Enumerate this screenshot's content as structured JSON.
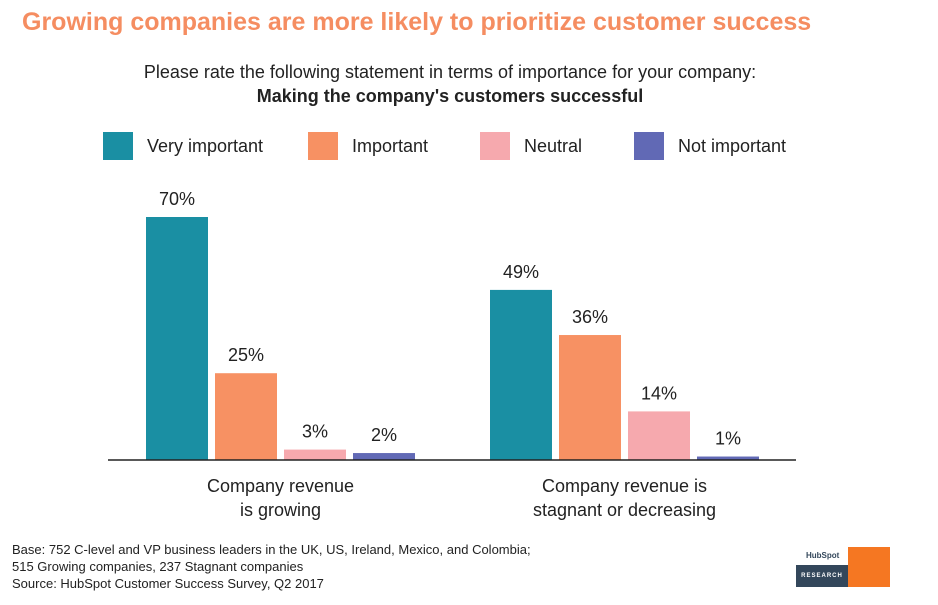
{
  "header": {
    "title": "Growing companies are more likely to prioritize customer success",
    "subtitle": "Please rate the following statement in terms of importance for your company:",
    "statement": "Making the company's customers successful"
  },
  "legend": [
    {
      "label": "Very important",
      "color": "#1a8fa3"
    },
    {
      "label": "Important",
      "color": "#f79163"
    },
    {
      "label": "Neutral",
      "color": "#f6a9ae"
    },
    {
      "label": "Not important",
      "color": "#6169b5"
    }
  ],
  "chart_data": {
    "type": "bar",
    "categories": [
      "Company revenue\nis growing",
      "Company revenue is\nstagnant or decreasing"
    ],
    "series": [
      {
        "name": "Very important",
        "values": [
          70,
          49
        ],
        "labels": [
          "70%",
          "49%"
        ]
      },
      {
        "name": "Important",
        "values": [
          25,
          36
        ],
        "labels": [
          "25%",
          "36%"
        ]
      },
      {
        "name": "Neutral",
        "values": [
          3,
          14
        ],
        "labels": [
          "3%",
          "14%"
        ]
      },
      {
        "name": "Not important",
        "values": [
          2,
          1
        ],
        "labels": [
          "2%",
          "1%"
        ]
      }
    ],
    "ylim": [
      0,
      70
    ],
    "grid": false
  },
  "footer": {
    "line1": "Base: 752 C-level and VP business leaders in the UK, US, Ireland, Mexico, and Colombia;",
    "line2": "515 Growing companies, 237 Stagnant companies",
    "line3": "Source: HubSpot Customer Success Survey, Q2 2017"
  },
  "logo": {
    "brand": "HubSpot",
    "tag": "RESEARCH"
  }
}
